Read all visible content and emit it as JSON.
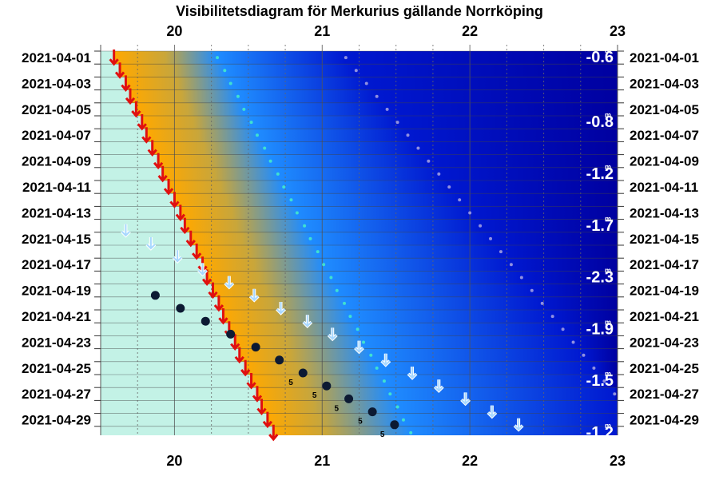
{
  "chart_data": {
    "type": "scatter",
    "title": "Visibilitetsdiagram för Merkurius gällande Norrköping",
    "x_label": "",
    "y_label": "",
    "x_ticks": [
      "20",
      "21",
      "22",
      "23"
    ],
    "xlim": [
      19.5,
      23
    ],
    "date_labels": [
      "2021-04-01",
      "2021-04-03",
      "2021-04-05",
      "2021-04-07",
      "2021-04-09",
      "2021-04-11",
      "2021-04-13",
      "2021-04-15",
      "2021-04-17",
      "2021-04-19",
      "2021-04-21",
      "2021-04-23",
      "2021-04-25",
      "2021-04-27",
      "2021-04-29"
    ],
    "dates": [
      "2021-04-01",
      "2021-04-02",
      "2021-04-03",
      "2021-04-04",
      "2021-04-05",
      "2021-04-06",
      "2021-04-07",
      "2021-04-08",
      "2021-04-09",
      "2021-04-10",
      "2021-04-11",
      "2021-04-12",
      "2021-04-13",
      "2021-04-14",
      "2021-04-15",
      "2021-04-16",
      "2021-04-17",
      "2021-04-18",
      "2021-04-19",
      "2021-04-20",
      "2021-04-21",
      "2021-04-22",
      "2021-04-23",
      "2021-04-24",
      "2021-04-25",
      "2021-04-26",
      "2021-04-27",
      "2021-04-28",
      "2021-04-29",
      "2021-04-30"
    ],
    "sunset_hours": [
      19.59,
      19.63,
      19.67,
      19.7,
      19.74,
      19.78,
      19.81,
      19.85,
      19.89,
      19.92,
      19.96,
      20.0,
      20.04,
      20.07,
      20.11,
      20.15,
      20.19,
      20.22,
      20.26,
      20.3,
      20.33,
      20.37,
      20.41,
      20.44,
      20.48,
      20.52,
      20.56,
      20.59,
      20.63,
      20.67
    ],
    "civil_twilight_end": [
      20.29,
      20.34,
      20.38,
      20.43,
      20.47,
      20.52,
      20.56,
      20.61,
      20.65,
      20.7,
      20.74,
      20.79,
      20.83,
      20.88,
      20.92,
      20.97,
      21.01,
      21.06,
      21.1,
      21.15,
      21.19,
      21.24,
      21.28,
      21.33,
      21.37,
      21.42,
      21.46,
      21.51,
      21.55,
      21.6
    ],
    "nautical_twilight_end": [
      21.16,
      21.23,
      21.3,
      21.37,
      21.44,
      21.51,
      21.58,
      21.65,
      21.72,
      21.79,
      21.86,
      21.93,
      22.0,
      22.07,
      22.14,
      22.21,
      22.28,
      22.35,
      22.42,
      22.49,
      22.56,
      22.63,
      22.7,
      22.77,
      22.84,
      22.91,
      22.98,
      23.05,
      23.12,
      23.19
    ],
    "mercury_set_arrows": [
      {
        "date": "2021-04-15",
        "hour": 19.67
      },
      {
        "date": "2021-04-16",
        "hour": 19.84
      },
      {
        "date": "2021-04-17",
        "hour": 20.02
      },
      {
        "date": "2021-04-18",
        "hour": 20.19
      },
      {
        "date": "2021-04-19",
        "hour": 20.37
      },
      {
        "date": "2021-04-20",
        "hour": 20.54
      },
      {
        "date": "2021-04-21",
        "hour": 20.72
      },
      {
        "date": "2021-04-22",
        "hour": 20.9
      },
      {
        "date": "2021-04-23",
        "hour": 21.07
      },
      {
        "date": "2021-04-24",
        "hour": 21.25
      },
      {
        "date": "2021-04-25",
        "hour": 21.43
      },
      {
        "date": "2021-04-26",
        "hour": 21.61
      },
      {
        "date": "2021-04-27",
        "hour": 21.79
      },
      {
        "date": "2021-04-28",
        "hour": 21.97
      },
      {
        "date": "2021-04-29",
        "hour": 22.15
      },
      {
        "date": "2021-04-30",
        "hour": 22.33
      }
    ],
    "mercury_visibility_points": [
      {
        "date": "2021-04-20",
        "hour": 19.87,
        "label": ""
      },
      {
        "date": "2021-04-21",
        "hour": 20.04,
        "label": ""
      },
      {
        "date": "2021-04-22",
        "hour": 20.21,
        "label": ""
      },
      {
        "date": "2021-04-23",
        "hour": 20.38,
        "label": ""
      },
      {
        "date": "2021-04-24",
        "hour": 20.55,
        "label": ""
      },
      {
        "date": "2021-04-25",
        "hour": 20.71,
        "label": ""
      },
      {
        "date": "2021-04-26",
        "hour": 20.87,
        "label": "5"
      },
      {
        "date": "2021-04-27",
        "hour": 21.03,
        "label": "5"
      },
      {
        "date": "2021-04-28",
        "hour": 21.18,
        "label": "5"
      },
      {
        "date": "2021-04-29",
        "hour": 21.34,
        "label": "5"
      },
      {
        "date": "2021-04-30",
        "hour": 21.49,
        "label": "5"
      }
    ],
    "magnitudes": [
      {
        "date": "2021-04-01",
        "value": "-0.6"
      },
      {
        "date": "2021-04-06",
        "value": "-0.8"
      },
      {
        "date": "2021-04-10",
        "value": "-1.2"
      },
      {
        "date": "2021-04-14",
        "value": "-1.7"
      },
      {
        "date": "2021-04-18",
        "value": "-2.3"
      },
      {
        "date": "2021-04-22",
        "value": "-1.9"
      },
      {
        "date": "2021-04-26",
        "value": "-1.5"
      },
      {
        "date": "2021-04-30",
        "value": "-1.2"
      }
    ],
    "magnitude_superscript": "m",
    "grid": true,
    "colors": {
      "daylight": "#c3f2e6",
      "sunset_arrow": "#e01010",
      "mercury_arrow": "#a8d8ff",
      "mercury_point": "#0c1a33",
      "night": "#0000a0"
    }
  }
}
